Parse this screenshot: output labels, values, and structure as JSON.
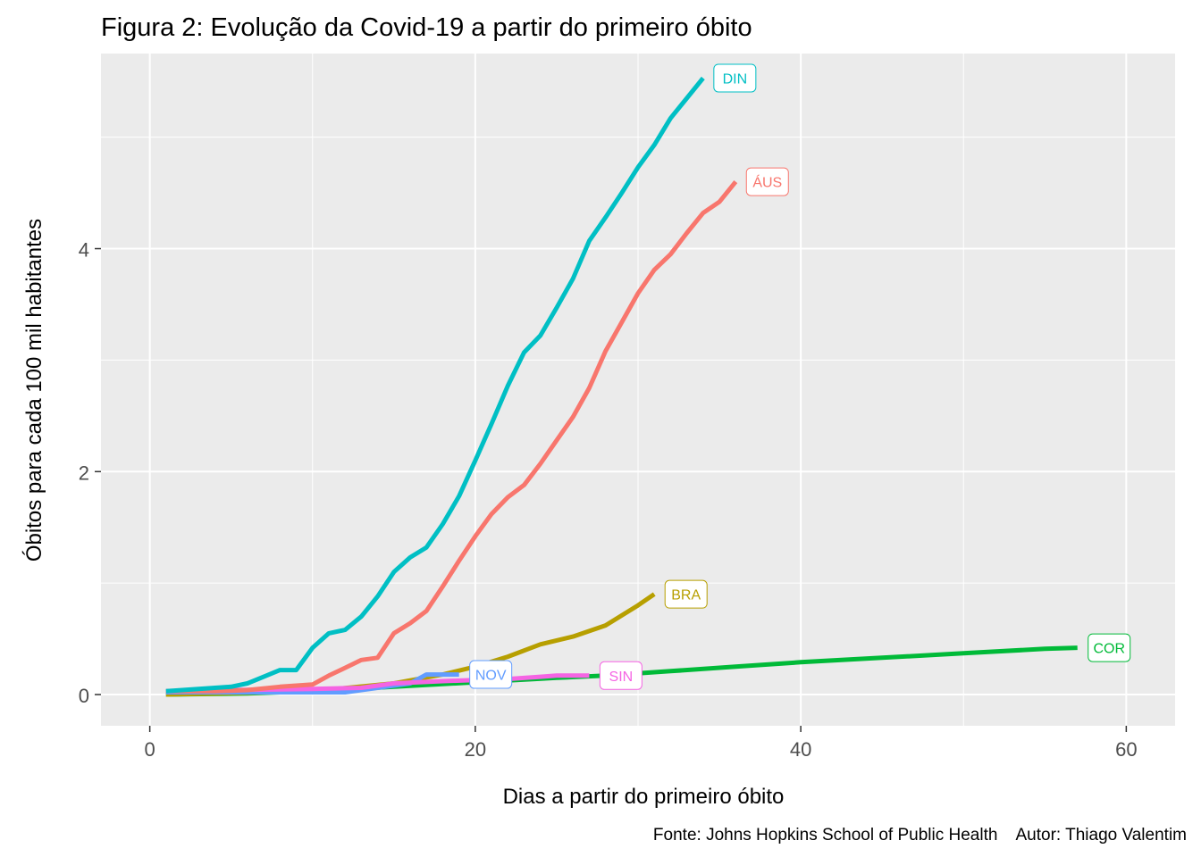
{
  "chart_data": {
    "type": "line",
    "title": "Figura 2: Evolução da Covid-19 a partir do primeiro óbito",
    "xlabel": "Dias a partir do primeiro óbito",
    "ylabel": "Óbitos para cada 100 mil habitantes",
    "caption": "Fonte: Johns Hopkins School of Public Health    Autor: Thiago Valentim",
    "xlim": [
      -3,
      63
    ],
    "ylim": [
      -0.28,
      5.75
    ],
    "x_ticks": [
      0,
      20,
      40,
      60
    ],
    "y_ticks": [
      0,
      2,
      4
    ],
    "x_tick_labels": [
      "0",
      "20",
      "40",
      "60"
    ],
    "y_tick_labels": [
      "0",
      "2",
      "4"
    ],
    "grid": true,
    "legend": "direct labels at line ends",
    "background_color": "#ebebeb",
    "series": [
      {
        "name": "COR",
        "color": "#00ba38",
        "x": [
          1,
          6,
          10,
          15,
          20,
          25,
          28,
          32,
          36,
          40,
          45,
          50,
          55,
          57
        ],
        "y": [
          0.0,
          0.01,
          0.03,
          0.07,
          0.11,
          0.15,
          0.17,
          0.21,
          0.25,
          0.29,
          0.33,
          0.37,
          0.41,
          0.42
        ]
      },
      {
        "name": "BRA",
        "color": "#b79f00",
        "x": [
          1,
          10,
          15,
          18,
          20,
          22,
          24,
          26,
          28,
          30,
          31
        ],
        "y": [
          0.0,
          0.03,
          0.1,
          0.18,
          0.25,
          0.34,
          0.45,
          0.52,
          0.62,
          0.8,
          0.9
        ]
      },
      {
        "name": "NOV",
        "color": "#619cff",
        "x": [
          1,
          5,
          10,
          12,
          14,
          16,
          17,
          18,
          19
        ],
        "y": [
          0.02,
          0.02,
          0.02,
          0.02,
          0.06,
          0.1,
          0.18,
          0.18,
          0.18
        ]
      },
      {
        "name": "SIN",
        "color": "#f564e3",
        "x": [
          1,
          5,
          10,
          13,
          15,
          18,
          20,
          22,
          24,
          25,
          26,
          27
        ],
        "y": [
          0.03,
          0.04,
          0.05,
          0.06,
          0.1,
          0.12,
          0.13,
          0.14,
          0.16,
          0.17,
          0.17,
          0.17
        ]
      },
      {
        "name": "ÁUS",
        "color": "#f8766d",
        "x": [
          1,
          4,
          6,
          8,
          10,
          11,
          12,
          13,
          14,
          15,
          16,
          17,
          18,
          19,
          20,
          21,
          22,
          23,
          24,
          25,
          26,
          27,
          28,
          29,
          30,
          31,
          32,
          33,
          34,
          35,
          36
        ],
        "y": [
          0.03,
          0.03,
          0.04,
          0.07,
          0.09,
          0.17,
          0.24,
          0.31,
          0.33,
          0.55,
          0.64,
          0.75,
          0.97,
          1.2,
          1.42,
          1.62,
          1.77,
          1.88,
          2.07,
          2.28,
          2.49,
          2.75,
          3.08,
          3.34,
          3.6,
          3.81,
          3.95,
          4.14,
          4.32,
          4.42,
          4.6
        ]
      },
      {
        "name": "DIN",
        "color": "#00bfc4",
        "x": [
          1,
          3,
          5,
          6,
          7,
          8,
          9,
          10,
          11,
          12,
          13,
          14,
          15,
          16,
          17,
          18,
          19,
          20,
          21,
          22,
          23,
          24,
          25,
          26,
          27,
          28,
          29,
          30,
          31,
          32,
          33,
          34
        ],
        "y": [
          0.03,
          0.05,
          0.07,
          0.1,
          0.16,
          0.22,
          0.22,
          0.42,
          0.55,
          0.58,
          0.7,
          0.88,
          1.1,
          1.23,
          1.32,
          1.53,
          1.78,
          2.1,
          2.43,
          2.77,
          3.07,
          3.22,
          3.47,
          3.73,
          4.07,
          4.28,
          4.5,
          4.73,
          4.93,
          5.17,
          5.35,
          5.53
        ]
      }
    ]
  }
}
